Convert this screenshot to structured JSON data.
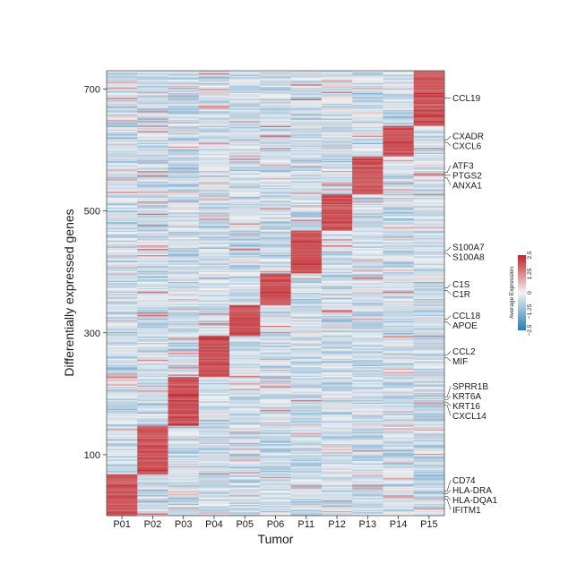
{
  "chart_data": {
    "type": "heatmap",
    "xlabel": "Tumor",
    "ylabel": "Differentially expressed genes",
    "categories": [
      "P01",
      "P02",
      "P03",
      "P04",
      "P05",
      "P06",
      "P11",
      "P12",
      "P13",
      "P14",
      "P15"
    ],
    "ylim": [
      0,
      730
    ],
    "yticks": [
      100,
      300,
      500,
      700
    ],
    "n_genes": 730,
    "blocks": [
      {
        "tumor": "P01",
        "gene_range": [
          0,
          68
        ]
      },
      {
        "tumor": "P02",
        "gene_range": [
          68,
          148
        ]
      },
      {
        "tumor": "P03",
        "gene_range": [
          148,
          228
        ]
      },
      {
        "tumor": "P04",
        "gene_range": [
          228,
          295
        ]
      },
      {
        "tumor": "P05",
        "gene_range": [
          295,
          345
        ]
      },
      {
        "tumor": "P06",
        "gene_range": [
          345,
          398
        ]
      },
      {
        "tumor": "P11",
        "gene_range": [
          398,
          467
        ]
      },
      {
        "tumor": "P12",
        "gene_range": [
          467,
          528
        ]
      },
      {
        "tumor": "P13",
        "gene_range": [
          528,
          589
        ]
      },
      {
        "tumor": "P14",
        "gene_range": [
          589,
          640
        ]
      },
      {
        "tumor": "P15",
        "gene_range": [
          640,
          730
        ]
      }
    ],
    "gene_labels": [
      {
        "label": "CCL19",
        "block": "P15"
      },
      {
        "label": "CXADR",
        "block": "P14"
      },
      {
        "label": "CXCL6",
        "block": "P14"
      },
      {
        "label": "ATF3",
        "block": "P13"
      },
      {
        "label": "PTGS2",
        "block": "P13"
      },
      {
        "label": "ANXA1",
        "block": "P13"
      },
      {
        "label": "S100A7",
        "block": "P11"
      },
      {
        "label": "S100A8",
        "block": "P11"
      },
      {
        "label": "C1S",
        "block": "P06"
      },
      {
        "label": "C1R",
        "block": "P06"
      },
      {
        "label": "CCL18",
        "block": "P05"
      },
      {
        "label": "APOE",
        "block": "P05"
      },
      {
        "label": "CCL2",
        "block": "P04"
      },
      {
        "label": "MIF",
        "block": "P04"
      },
      {
        "label": "SPRR1B",
        "block": "P03"
      },
      {
        "label": "KRT6A",
        "block": "P03"
      },
      {
        "label": "KRT16",
        "block": "P03"
      },
      {
        "label": "CXCL14",
        "block": "P03"
      },
      {
        "label": "CD74",
        "block": "P01"
      },
      {
        "label": "HLA-DRA",
        "block": "P01"
      },
      {
        "label": "HLA-DQA1",
        "block": "P01"
      },
      {
        "label": "IFITM1",
        "block": "P01"
      }
    ],
    "legend": {
      "title": "Average Expression",
      "range": [
        -2.5,
        2.5
      ],
      "tick_labels": [
        "−2.5",
        "−1.25",
        "0",
        "1.25",
        "2.5"
      ],
      "placement": "right"
    },
    "colors": {
      "low": "#2c7bb6",
      "mid": "#f2f2f2",
      "high": "#c0232a"
    },
    "grid": false
  }
}
